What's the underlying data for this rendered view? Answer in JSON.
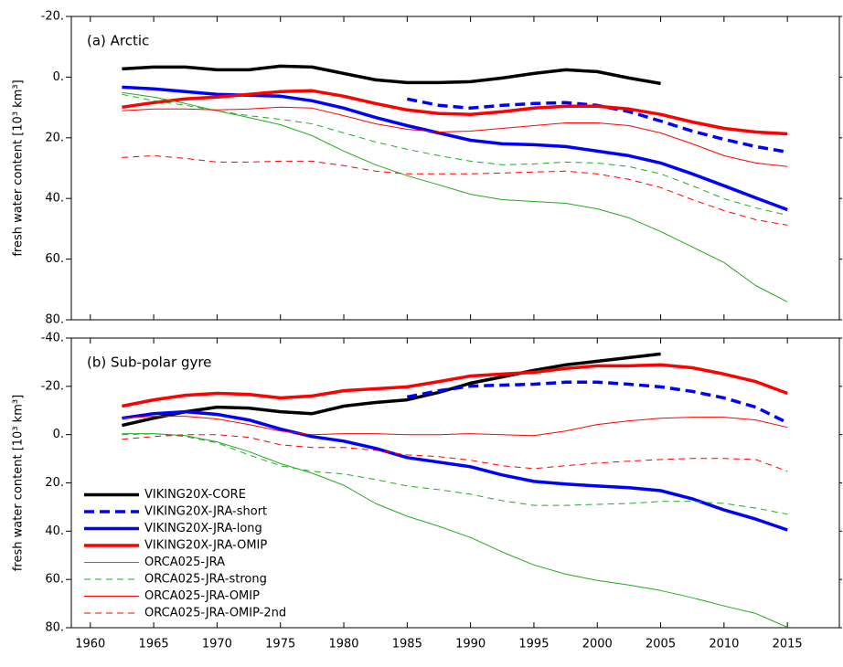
{
  "chart_data": [
    {
      "type": "line",
      "title": "(a) Arctic",
      "ylabel": "fresh water content [10³ km³]",
      "xlim": [
        1958.5,
        2019.1
      ],
      "xticks": [
        1960,
        1965,
        1970,
        1975,
        1980,
        1985,
        1990,
        1995,
        2000,
        2005,
        2010,
        2015
      ],
      "xtick_labels": false,
      "ylim": [
        -20,
        80
      ],
      "y_inverted": true,
      "yticks": [
        {
          "value": -20,
          "label": "-20."
        },
        {
          "value": 0,
          "label": "0."
        },
        {
          "value": 20,
          "label": "20."
        },
        {
          "value": 40,
          "label": "40."
        },
        {
          "value": 60,
          "label": "60."
        },
        {
          "value": 80,
          "label": "80."
        }
      ],
      "legend": false,
      "x": [
        1962.5,
        1965,
        1967.5,
        1970,
        1972.5,
        1975,
        1977.5,
        1980,
        1982.5,
        1985,
        1987.5,
        1990,
        1992.5,
        1995,
        1997.5,
        2000,
        2002.5,
        2005,
        2007.5,
        2010,
        2012.5,
        2015
      ],
      "series": [
        {
          "color": "#000000",
          "width": 3.5,
          "dash": false,
          "values": [
            -2.7,
            -3.3,
            -3.3,
            -2.4,
            -2.4,
            -3.6,
            -3.3,
            -1.2,
            0.9,
            1.8,
            1.8,
            1.5,
            0.3,
            -1.2,
            -2.4,
            -1.8,
            0.3,
            2.1,
            null,
            null,
            null,
            null
          ]
        },
        {
          "color": "#0000ff",
          "width": 3.5,
          "dash": true,
          "values": [
            null,
            null,
            null,
            null,
            null,
            null,
            null,
            null,
            null,
            7.2,
            9.3,
            10.2,
            9.3,
            8.7,
            8.4,
            9.3,
            11.4,
            14.5,
            17.8,
            20.5,
            22.9,
            24.7
          ]
        },
        {
          "color": "#0000ff",
          "width": 3.5,
          "dash": false,
          "values": [
            3.3,
            3.9,
            4.8,
            5.7,
            6.0,
            6.3,
            7.8,
            10.2,
            13.3,
            16.0,
            18.4,
            20.8,
            22.0,
            22.3,
            22.9,
            24.4,
            25.9,
            28.3,
            31.9,
            35.8,
            39.8,
            43.7
          ]
        },
        {
          "color": "#ff0000",
          "width": 3.5,
          "dash": false,
          "values": [
            9.9,
            8.4,
            7.2,
            6.6,
            5.7,
            4.8,
            4.5,
            6.3,
            8.7,
            10.8,
            12.0,
            12.3,
            11.4,
            10.2,
            9.6,
            9.6,
            10.5,
            12.3,
            14.8,
            16.9,
            18.1,
            18.7
          ]
        },
        {
          "color": "#22aa22",
          "width": 1,
          "dash": false,
          "values": [
            5.1,
            6.6,
            8.7,
            11.1,
            13.3,
            15.7,
            19.3,
            24.4,
            28.9,
            32.5,
            35.5,
            38.6,
            40.4,
            41.0,
            41.6,
            43.4,
            46.4,
            50.9,
            56.0,
            61.1,
            68.7,
            74.1
          ]
        },
        {
          "color": "#22aa22",
          "width": 1,
          "dash": true,
          "values": [
            5.7,
            7.8,
            9.3,
            11.1,
            12.7,
            13.9,
            15.4,
            18.4,
            21.4,
            23.8,
            25.9,
            27.7,
            28.9,
            28.6,
            28.0,
            28.3,
            29.5,
            31.9,
            35.8,
            40.1,
            43.1,
            45.5
          ]
        },
        {
          "color": "#ff0000",
          "width": 1,
          "dash": false,
          "values": [
            11.1,
            10.5,
            10.5,
            10.8,
            10.5,
            9.9,
            10.2,
            12.7,
            15.4,
            17.2,
            18.1,
            17.8,
            16.9,
            16.0,
            15.1,
            15.1,
            16.0,
            18.4,
            22.0,
            25.9,
            28.3,
            29.5
          ]
        },
        {
          "color": "#ff0000",
          "width": 1,
          "dash": true,
          "values": [
            26.5,
            25.9,
            26.8,
            28.0,
            28.0,
            27.7,
            27.7,
            29.2,
            31.0,
            31.9,
            31.9,
            31.9,
            31.6,
            31.3,
            31.0,
            31.9,
            33.7,
            36.4,
            40.4,
            44.0,
            47.0,
            48.8
          ]
        }
      ]
    },
    {
      "type": "line",
      "title": "(b) Sub-polar gyre",
      "ylabel": "fresh water content [10³ km³]",
      "xlim": [
        1958.5,
        2019.1
      ],
      "xticks": [
        1960,
        1965,
        1970,
        1975,
        1980,
        1985,
        1990,
        1995,
        2000,
        2005,
        2010,
        2015
      ],
      "xtick_labels": true,
      "ylim": [
        -40,
        80
      ],
      "y_inverted": true,
      "yticks": [
        {
          "value": -40,
          "label": "-40."
        },
        {
          "value": -20,
          "label": "-20."
        },
        {
          "value": 0,
          "label": "0."
        },
        {
          "value": 20,
          "label": "20."
        },
        {
          "value": 40,
          "label": "40."
        },
        {
          "value": 60,
          "label": "60."
        },
        {
          "value": 80,
          "label": "80."
        }
      ],
      "legend": "lower left",
      "x": [
        1962.5,
        1965,
        1967.5,
        1970,
        1972.5,
        1975,
        1977.5,
        1980,
        1982.5,
        1985,
        1987.5,
        1990,
        1992.5,
        1995,
        1997.5,
        2000,
        2002.5,
        2005,
        2007.5,
        2010,
        2012.5,
        2015
      ],
      "series": [
        {
          "name": "VIKING20X-CORE",
          "color": "#000000",
          "width": 3.5,
          "dash": false,
          "values": [
            -3.8,
            -6.8,
            -9.5,
            -11.4,
            -11.0,
            -9.5,
            -8.7,
            -11.8,
            -13.3,
            -14.4,
            -17.5,
            -21.3,
            -23.9,
            -26.6,
            -28.9,
            -30.4,
            -31.9,
            -33.4,
            null,
            null,
            null,
            null
          ]
        },
        {
          "name": "VIKING20X-JRA-short",
          "color": "#0000ff",
          "width": 3.5,
          "dash": true,
          "values": [
            null,
            null,
            null,
            null,
            null,
            null,
            null,
            null,
            null,
            -15.6,
            -18.2,
            -20.1,
            -20.5,
            -20.9,
            -21.7,
            -21.7,
            -20.9,
            -19.8,
            -17.9,
            -15.2,
            -11.4,
            -4.9
          ]
        },
        {
          "name": "VIKING20X-JRA-long",
          "color": "#0000ff",
          "width": 3.5,
          "dash": false,
          "values": [
            -6.8,
            -8.7,
            -9.5,
            -8.4,
            -6.1,
            -2.3,
            0.8,
            2.7,
            5.7,
            9.5,
            11.4,
            13.3,
            16.7,
            19.4,
            20.5,
            21.3,
            22.0,
            23.2,
            26.6,
            31.2,
            35.0,
            39.5
          ]
        },
        {
          "name": "VIKING20X-JRA-OMIP",
          "color": "#ff0000",
          "width": 3.5,
          "dash": false,
          "values": [
            -11.8,
            -14.4,
            -16.3,
            -17.1,
            -16.7,
            -15.2,
            -16.0,
            -18.2,
            -19.0,
            -19.8,
            -22.0,
            -24.3,
            -25.1,
            -25.8,
            -27.4,
            -28.5,
            -28.5,
            -28.9,
            -27.7,
            -25.1,
            -22.0,
            -17.1
          ]
        },
        {
          "name": "ORCA025-JRA",
          "color": "#22aa22",
          "width": 1,
          "dash": false,
          "values": [
            -0.4,
            -0.4,
            0.4,
            3.0,
            7.0,
            12.0,
            16.0,
            21.0,
            28.5,
            33.8,
            38.0,
            42.6,
            48.6,
            54.0,
            57.8,
            60.4,
            62.3,
            64.6,
            67.6,
            71.0,
            74.1,
            79.8
          ]
        },
        {
          "name": "ORCA025-JRA-strong",
          "color": "#22aa22",
          "width": 1,
          "dash": true,
          "values": [
            0.0,
            -0.4,
            0.8,
            3.4,
            8.4,
            12.9,
            15.2,
            16.3,
            18.6,
            21.3,
            22.8,
            24.7,
            27.4,
            29.3,
            29.3,
            28.9,
            28.5,
            27.7,
            27.7,
            28.5,
            30.4,
            33.0
          ]
        },
        {
          "name": "ORCA025-JRA-OMIP",
          "color": "#ff0000",
          "width": 1,
          "dash": false,
          "values": [
            -6.8,
            -7.6,
            -7.6,
            -6.5,
            -4.2,
            -1.5,
            0.0,
            -0.4,
            -0.4,
            0.0,
            0.0,
            -0.4,
            0.0,
            0.4,
            -1.5,
            -4.2,
            -5.7,
            -6.8,
            -7.2,
            -7.2,
            -6.1,
            -3.0
          ]
        },
        {
          "name": "ORCA025-JRA-OMIP-2nd",
          "color": "#ff0000",
          "width": 1,
          "dash": true,
          "values": [
            1.9,
            0.8,
            0.0,
            0.0,
            1.1,
            4.2,
            5.3,
            5.3,
            6.5,
            8.4,
            9.1,
            10.6,
            12.9,
            14.1,
            12.9,
            11.8,
            11.0,
            10.3,
            9.9,
            9.9,
            10.3,
            15.2
          ]
        }
      ]
    }
  ]
}
